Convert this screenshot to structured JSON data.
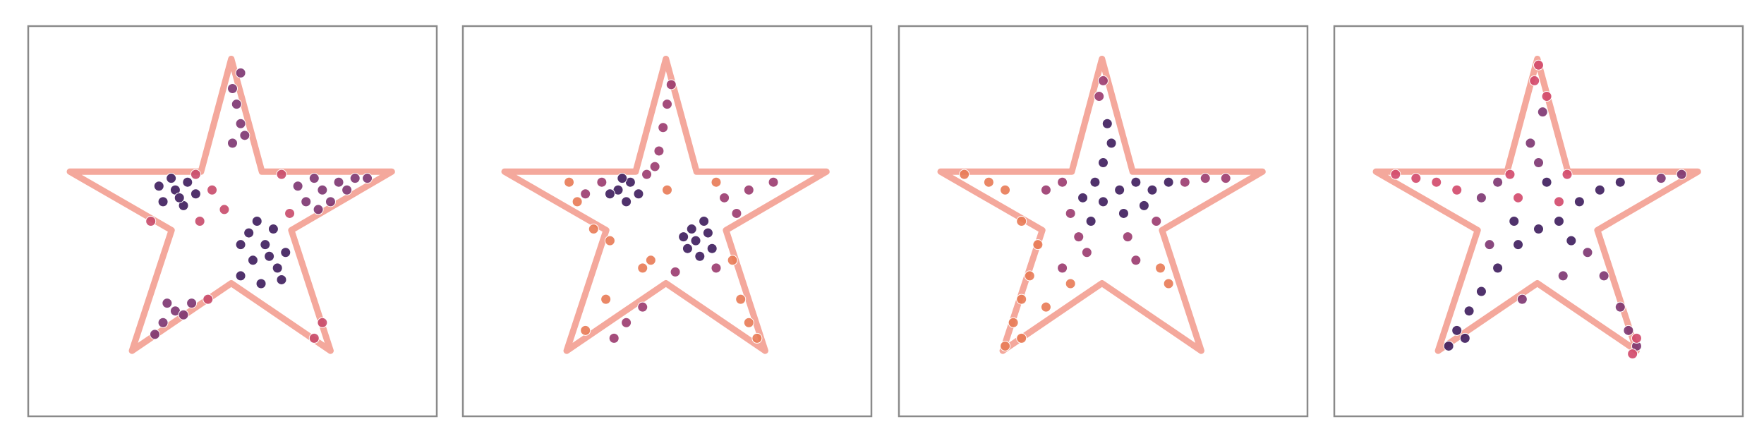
{
  "chart_data": [
    {
      "type": "scatter",
      "xlim": [
        0,
        100
      ],
      "ylim": [
        0,
        100
      ],
      "series": [
        {
          "color": "#3d1c5c",
          "x": [
            52,
            55,
            58,
            61,
            54,
            60,
            63,
            57,
            52,
            62,
            56,
            59,
            33,
            36,
            39,
            35,
            38,
            41,
            32,
            37
          ],
          "values": [
            36,
            40,
            44,
            38,
            47,
            48,
            42,
            34,
            44,
            35,
            50,
            41,
            55,
            58,
            60,
            61,
            54,
            57,
            59,
            56
          ]
        },
        {
          "color": "#7c3470",
          "x": [
            68,
            72,
            76,
            80,
            70,
            74,
            78,
            83,
            66,
            71,
            50,
            52,
            51,
            53,
            50,
            52,
            33,
            36,
            40,
            34,
            31,
            38
          ],
          "values": [
            55,
            58,
            60,
            61,
            61,
            55,
            58,
            61,
            59,
            53,
            70,
            75,
            80,
            72,
            84,
            88,
            24,
            27,
            29,
            29,
            21,
            26
          ]
        },
        {
          "color": "#c84a6a",
          "x": [
            42,
            48,
            64,
            30,
            44,
            70,
            72,
            41,
            45,
            62
          ],
          "values": [
            50,
            53,
            52,
            50,
            30,
            20,
            24,
            62,
            58,
            62
          ]
        }
      ]
    },
    {
      "type": "scatter",
      "xlim": [
        0,
        100
      ],
      "ylim": [
        0,
        100
      ],
      "series": [
        {
          "color": "#3d1c5c",
          "x": [
            38,
            41,
            40,
            43,
            36,
            39,
            57,
            60,
            55,
            58,
            61,
            56,
            59,
            54
          ],
          "values": [
            58,
            60,
            55,
            57,
            57,
            61,
            45,
            47,
            43,
            41,
            43,
            48,
            50,
            46
          ]
        },
        {
          "color": "#9a3a6e",
          "x": [
            45,
            47,
            48,
            49,
            50,
            51,
            34,
            30,
            64,
            70,
            76,
            67,
            52,
            62,
            40,
            37,
            44
          ],
          "values": [
            62,
            64,
            68,
            74,
            80,
            85,
            60,
            57,
            56,
            58,
            60,
            52,
            37,
            38,
            24,
            20,
            28
          ]
        },
        {
          "color": "#e87a55",
          "x": [
            28,
            26,
            32,
            36,
            46,
            66,
            68,
            70,
            72,
            44,
            30,
            35,
            50,
            62
          ],
          "values": [
            55,
            60,
            48,
            45,
            40,
            40,
            30,
            24,
            20,
            38,
            22,
            30,
            58,
            60
          ]
        }
      ]
    },
    {
      "type": "scatter",
      "xlim": [
        0,
        100
      ],
      "ylim": [
        0,
        100
      ],
      "series": [
        {
          "color": "#3d1c5c",
          "x": [
            48,
            50,
            52,
            45,
            54,
            58,
            62,
            66,
            50,
            55,
            47,
            60,
            51
          ],
          "values": [
            60,
            65,
            70,
            56,
            58,
            60,
            58,
            60,
            55,
            52,
            50,
            54,
            75
          ]
        },
        {
          "color": "#9a3a6e",
          "x": [
            40,
            36,
            42,
            44,
            56,
            63,
            70,
            75,
            80,
            49,
            50,
            46,
            58,
            40
          ],
          "values": [
            60,
            58,
            52,
            46,
            46,
            50,
            60,
            61,
            61,
            82,
            86,
            42,
            40,
            38
          ]
        },
        {
          "color": "#e87a55",
          "x": [
            22,
            16,
            26,
            30,
            34,
            32,
            30,
            28,
            36,
            42,
            26,
            30,
            64,
            66
          ],
          "values": [
            60,
            62,
            58,
            50,
            44,
            36,
            30,
            24,
            28,
            34,
            18,
            20,
            38,
            34
          ]
        }
      ]
    },
    {
      "type": "scatter",
      "xlim": [
        0,
        100
      ],
      "ylim": [
        0,
        100
      ],
      "series": [
        {
          "color": "#3d1c5c",
          "x": [
            28,
            30,
            33,
            32,
            36,
            40,
            45,
            50,
            55,
            58,
            60,
            52,
            44,
            65,
            70
          ],
          "values": [
            18,
            22,
            27,
            20,
            32,
            38,
            44,
            48,
            50,
            45,
            55,
            60,
            50,
            58,
            60
          ]
        },
        {
          "color": "#7c3470",
          "x": [
            50,
            48,
            51,
            40,
            36,
            62,
            66,
            70,
            72,
            74,
            80,
            85,
            46,
            38,
            56
          ],
          "values": [
            65,
            70,
            78,
            60,
            56,
            42,
            36,
            28,
            22,
            18,
            61,
            62,
            30,
            44,
            36
          ]
        },
        {
          "color": "#d2486a",
          "x": [
            15,
            20,
            25,
            30,
            49,
            50,
            52,
            43,
            57,
            74,
            73,
            55,
            45
          ],
          "values": [
            62,
            61,
            60,
            58,
            86,
            90,
            82,
            62,
            62,
            20,
            16,
            55,
            56
          ]
        }
      ]
    }
  ]
}
